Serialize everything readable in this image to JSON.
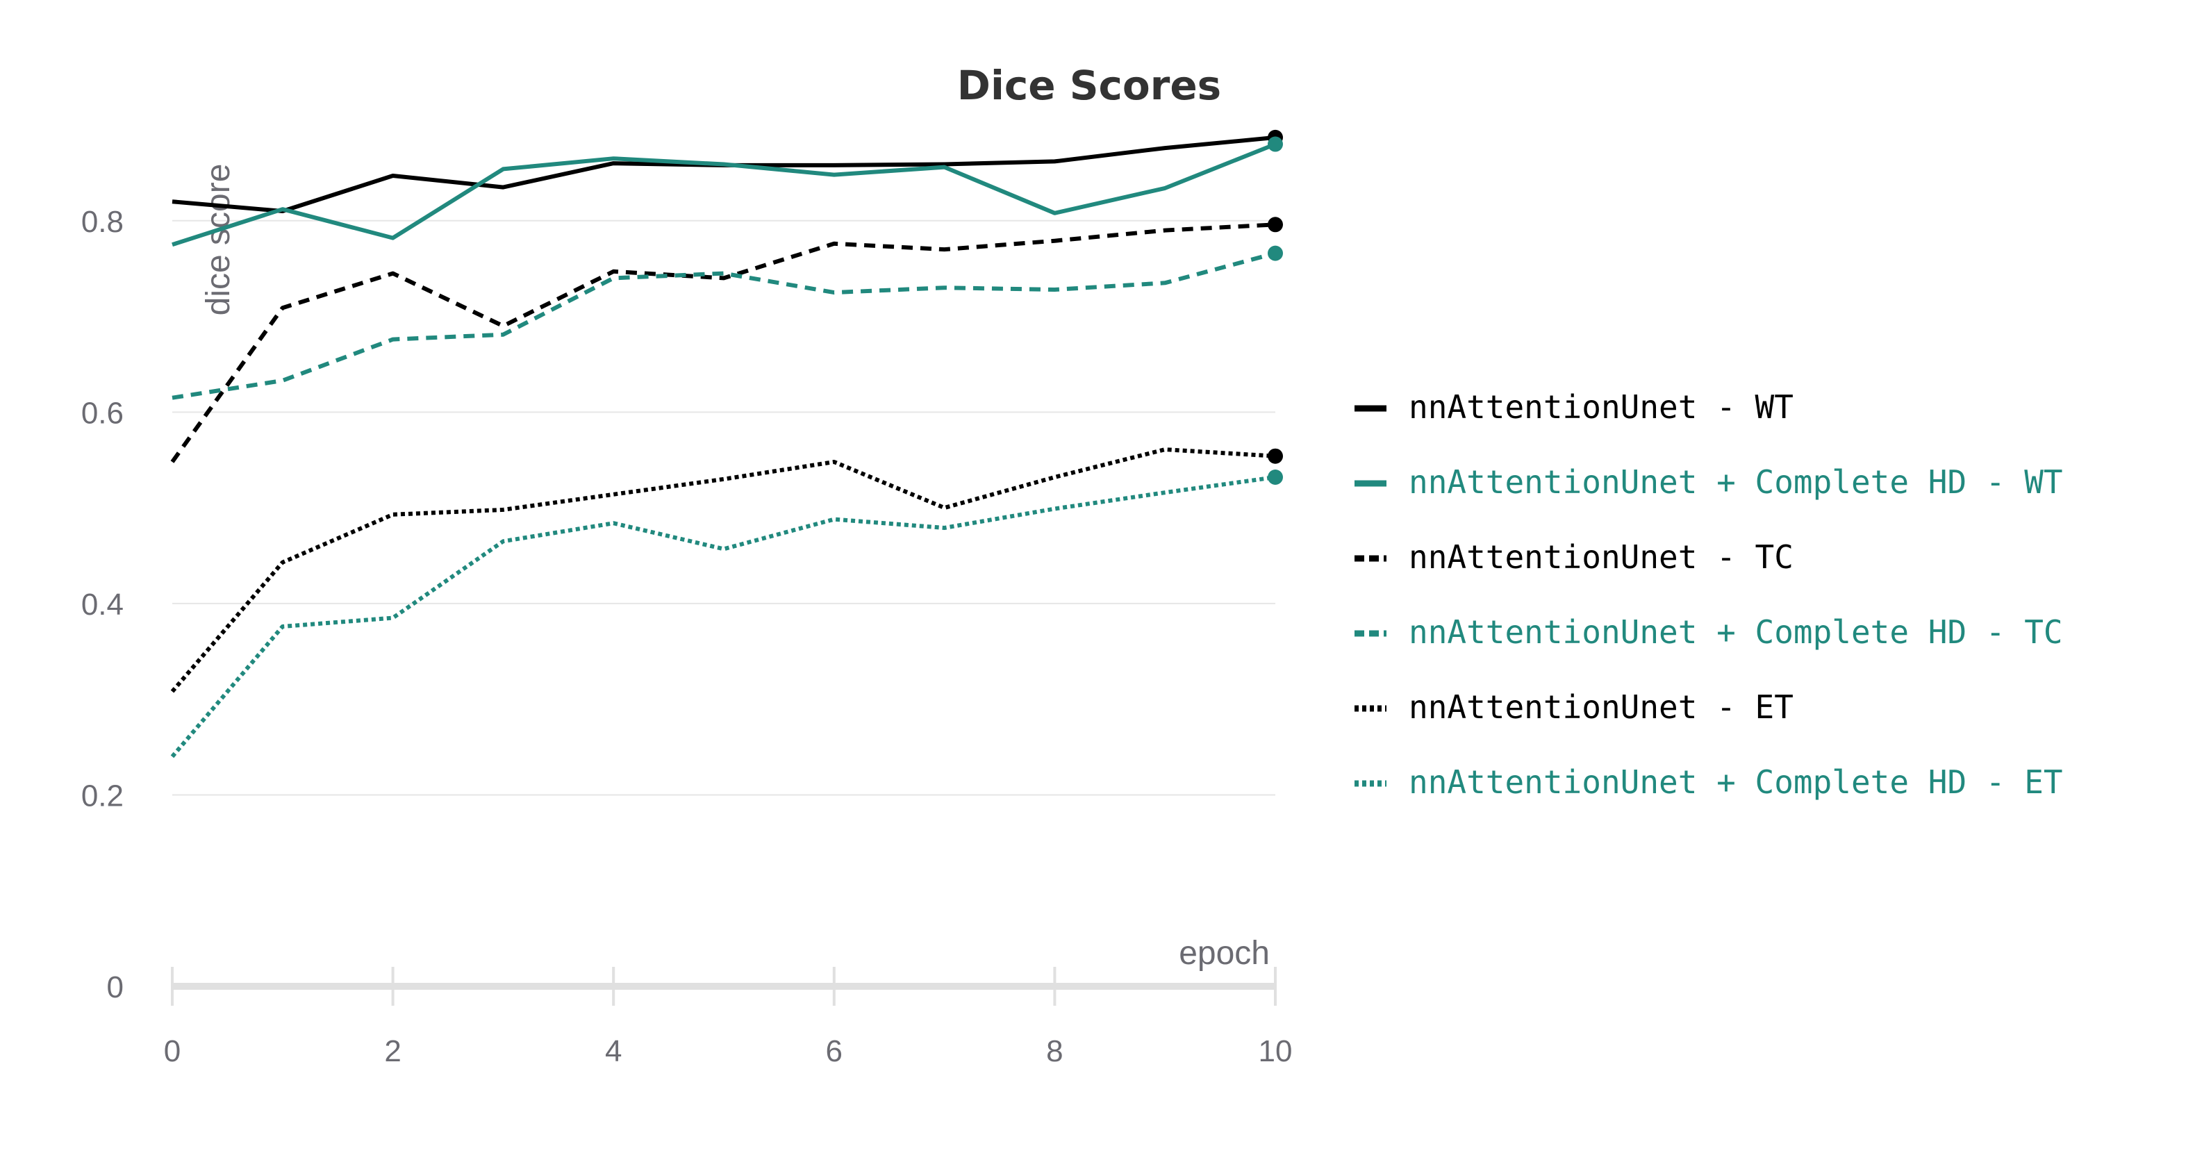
{
  "chart_data": {
    "type": "line",
    "title": "Dice Scores",
    "xlabel": "epoch",
    "ylabel": "dice score",
    "xlim": [
      0,
      10
    ],
    "ylim": [
      0,
      0.9
    ],
    "x_ticks": [
      0,
      2,
      4,
      6,
      8,
      10
    ],
    "y_ticks": [
      0,
      0.2,
      0.4,
      0.6,
      0.8
    ],
    "grid": true,
    "legend_position": "right",
    "x": [
      0,
      1,
      2,
      3,
      4,
      5,
      6,
      7,
      8,
      9,
      10
    ],
    "series": [
      {
        "name": "nnAttentionUnet - WT",
        "color": "#000000",
        "dash": "solid",
        "values": [
          0.82,
          0.81,
          0.847,
          0.835,
          0.86,
          0.858,
          0.858,
          0.859,
          0.862,
          0.876,
          0.887
        ]
      },
      {
        "name": "nnAttentionUnet + Complete HD - WT",
        "color": "#21897e",
        "dash": "solid",
        "values": [
          0.775,
          0.812,
          0.782,
          0.854,
          0.865,
          0.859,
          0.848,
          0.856,
          0.808,
          0.834,
          0.88
        ]
      },
      {
        "name": "nnAttentionUnet - TC",
        "color": "#000000",
        "dash": "dashed",
        "values": [
          0.548,
          0.709,
          0.745,
          0.69,
          0.747,
          0.74,
          0.776,
          0.77,
          0.779,
          0.79,
          0.796
        ]
      },
      {
        "name": "nnAttentionUnet + Complete HD - TC",
        "color": "#21897e",
        "dash": "dashed",
        "values": [
          0.615,
          0.633,
          0.676,
          0.681,
          0.74,
          0.745,
          0.725,
          0.73,
          0.728,
          0.735,
          0.766
        ]
      },
      {
        "name": "nnAttentionUnet - ET",
        "color": "#000000",
        "dash": "dotted",
        "values": [
          0.308,
          0.443,
          0.493,
          0.498,
          0.514,
          0.53,
          0.548,
          0.5,
          0.532,
          0.561,
          0.554
        ]
      },
      {
        "name": "nnAttentionUnet + Complete HD - ET",
        "color": "#21897e",
        "dash": "dotted",
        "values": [
          0.24,
          0.376,
          0.385,
          0.465,
          0.484,
          0.457,
          0.488,
          0.479,
          0.499,
          0.516,
          0.532
        ]
      }
    ]
  }
}
